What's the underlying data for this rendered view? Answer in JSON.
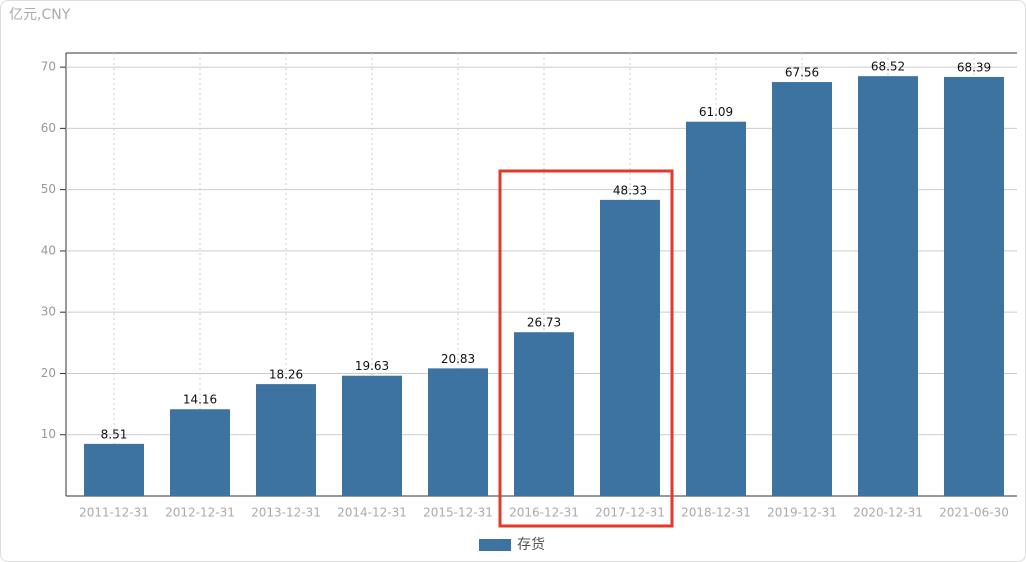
{
  "chart_data": {
    "type": "bar",
    "unit": "亿元,CNY",
    "categories": [
      "2011-12-31",
      "2012-12-31",
      "2013-12-31",
      "2014-12-31",
      "2015-12-31",
      "2016-12-31",
      "2017-12-31",
      "2018-12-31",
      "2019-12-31",
      "2020-12-31",
      "2021-06-30"
    ],
    "series": [
      {
        "name": "存货",
        "color": "#3d73a0",
        "values": [
          8.51,
          14.16,
          18.26,
          19.63,
          20.83,
          26.73,
          48.33,
          61.09,
          67.56,
          68.52,
          68.39
        ]
      }
    ],
    "ylim": [
      0,
      72.3
    ],
    "yticks": [
      10,
      20,
      30,
      40,
      50,
      60,
      70
    ],
    "grid": true,
    "legend": "bottom"
  }
}
